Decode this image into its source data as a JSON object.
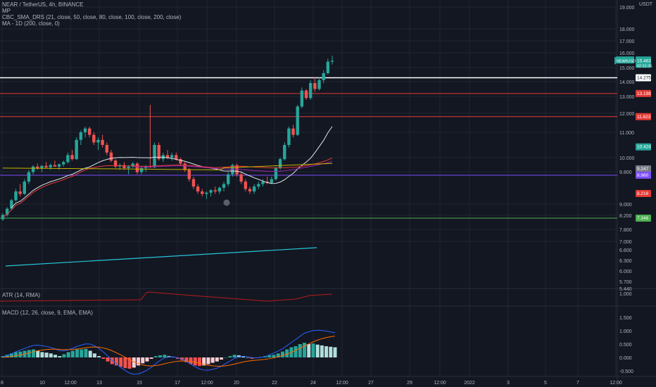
{
  "header": {
    "symbol_line": "NEAR / TetherUS, 4h, BINANCE",
    "indicator_mp": "MP",
    "indicator_cbc": "CBC_SMA_DRS (21, close, 50, close, 80, close, 100, close, 200, close)",
    "indicator_ma": "MA - 1D (200, close, 0)",
    "currency": "USDT"
  },
  "atr_panel": {
    "label": "ATR (14, RMA)",
    "axis_value": "1.000"
  },
  "macd_panel": {
    "label": "MACD (12, 26, close, 9, EMA, EMA)",
    "axis_labels": [
      "1.500",
      "1.000",
      "0.500",
      "0.000",
      "-0.500"
    ]
  },
  "colors": {
    "background": "#131722",
    "up": "#26a69a",
    "down": "#ef5350",
    "grid": "#1f2433",
    "sma21": "#e0e3eb",
    "sma50": "#e53935",
    "sma80": "#9c27b0",
    "sma200": "#c8b400",
    "ma1d": "#26c6da",
    "level_red": "#e53935",
    "level_white": "#ffffff",
    "level_purple": "#7c4dff",
    "level_green": "#4caf50"
  },
  "chart_data": {
    "type": "candlestick",
    "price_axis_labels": [
      "19.000",
      "18.000",
      "17.000",
      "16.000",
      "15.000",
      "14.000",
      "13.000",
      "12.000",
      "11.000",
      "10.000",
      "9.800",
      "9.000",
      "8.200",
      "7.800",
      "7.000",
      "6.600",
      "6.300",
      "6.000",
      "5.700",
      "5.440"
    ],
    "time_axis_labels": [
      "8",
      "10",
      "12:00",
      "13",
      "15",
      "17",
      "12:00",
      "20",
      "22",
      "24",
      "12:00",
      "27",
      "29",
      "12:00",
      "2022",
      "3",
      "5",
      "7",
      "12:00"
    ],
    "horizontal_levels": [
      {
        "price": "14.275",
        "color": "white"
      },
      {
        "price": "13.198",
        "color": "red"
      },
      {
        "price": "11.823",
        "color": "red"
      },
      {
        "price": "8.960",
        "color": "purple"
      },
      {
        "price": "7.346",
        "color": "green"
      }
    ],
    "price_tags": [
      {
        "label": "NEARUSDT",
        "value": "15.463",
        "sub": "02:31:35",
        "color": "teal"
      },
      {
        "value": "14.275",
        "color": "white"
      },
      {
        "value": "13.198",
        "color": "red"
      },
      {
        "value": "11.823",
        "color": "red"
      },
      {
        "value": "10.424",
        "color": "teal"
      },
      {
        "value": "9.247",
        "color": "gray"
      },
      {
        "value": "8.960",
        "color": "purple"
      },
      {
        "value": "8.216",
        "color": "red"
      },
      {
        "value": "7.346",
        "color": "green"
      }
    ],
    "candles": [
      [
        7.3,
        7.5,
        7.25,
        7.45
      ],
      [
        7.45,
        7.7,
        7.4,
        7.65
      ],
      [
        7.65,
        8.0,
        7.6,
        7.95
      ],
      [
        7.95,
        8.4,
        7.9,
        8.3
      ],
      [
        8.3,
        8.6,
        8.1,
        8.2
      ],
      [
        8.2,
        8.8,
        8.15,
        8.7
      ],
      [
        8.7,
        9.2,
        8.6,
        9.1
      ],
      [
        9.1,
        9.5,
        9.0,
        9.4
      ],
      [
        9.4,
        9.6,
        9.2,
        9.3
      ],
      [
        9.3,
        9.5,
        9.1,
        9.45
      ],
      [
        9.45,
        9.7,
        9.3,
        9.35
      ],
      [
        9.35,
        9.6,
        9.2,
        9.5
      ],
      [
        9.5,
        9.8,
        9.4,
        9.4
      ],
      [
        9.4,
        9.6,
        9.2,
        9.55
      ],
      [
        9.55,
        9.8,
        9.4,
        9.7
      ],
      [
        9.7,
        10.2,
        9.6,
        10.1
      ],
      [
        10.1,
        10.3,
        9.8,
        9.9
      ],
      [
        9.9,
        10.8,
        9.85,
        10.7
      ],
      [
        10.7,
        11.1,
        10.5,
        11.0
      ],
      [
        11.0,
        11.3,
        10.8,
        11.2
      ],
      [
        11.2,
        11.3,
        10.8,
        10.9
      ],
      [
        10.9,
        11.0,
        10.5,
        10.6
      ],
      [
        10.6,
        10.8,
        10.3,
        10.7
      ],
      [
        10.7,
        10.9,
        10.4,
        10.5
      ],
      [
        10.5,
        10.6,
        10.1,
        10.2
      ],
      [
        10.2,
        10.3,
        9.7,
        9.8
      ],
      [
        9.8,
        9.9,
        9.3,
        9.4
      ],
      [
        9.4,
        9.6,
        9.2,
        9.5
      ],
      [
        9.5,
        9.7,
        9.2,
        9.3
      ],
      [
        9.3,
        9.5,
        9.0,
        9.4
      ],
      [
        9.4,
        9.7,
        9.3,
        9.6
      ],
      [
        9.6,
        9.7,
        9.0,
        9.1
      ],
      [
        9.1,
        9.4,
        9.0,
        9.3
      ],
      [
        9.3,
        9.5,
        9.1,
        9.4
      ],
      [
        9.4,
        12.5,
        9.3,
        9.35
      ],
      [
        9.35,
        10.6,
        9.3,
        10.5
      ],
      [
        10.5,
        10.6,
        9.8,
        9.9
      ],
      [
        9.9,
        10.2,
        9.7,
        10.1
      ],
      [
        10.1,
        10.3,
        9.9,
        10.0
      ],
      [
        10.0,
        10.2,
        9.8,
        10.1
      ],
      [
        10.1,
        10.2,
        9.8,
        9.9
      ],
      [
        9.9,
        10.0,
        9.5,
        9.6
      ],
      [
        9.6,
        9.7,
        9.1,
        9.2
      ],
      [
        9.2,
        9.3,
        8.7,
        8.8
      ],
      [
        8.8,
        8.9,
        8.4,
        8.5
      ],
      [
        8.5,
        8.6,
        8.2,
        8.3
      ],
      [
        8.3,
        8.4,
        8.1,
        8.2
      ],
      [
        8.2,
        8.3,
        8.0,
        8.25
      ],
      [
        8.25,
        8.4,
        8.1,
        8.35
      ],
      [
        8.35,
        8.5,
        8.2,
        8.3
      ],
      [
        8.3,
        8.5,
        8.2,
        8.45
      ],
      [
        8.45,
        8.7,
        8.3,
        8.6
      ],
      [
        8.6,
        9.1,
        8.5,
        9.0
      ],
      [
        9.0,
        9.6,
        8.9,
        9.5
      ],
      [
        9.5,
        9.6,
        8.9,
        9.0
      ],
      [
        9.0,
        9.1,
        8.6,
        8.7
      ],
      [
        8.7,
        8.8,
        8.3,
        8.4
      ],
      [
        8.4,
        8.5,
        8.2,
        8.3
      ],
      [
        8.3,
        8.6,
        8.2,
        8.5
      ],
      [
        8.5,
        8.7,
        8.4,
        8.6
      ],
      [
        8.6,
        8.8,
        8.5,
        8.7
      ],
      [
        8.7,
        8.9,
        8.6,
        8.65
      ],
      [
        8.65,
        8.9,
        8.6,
        8.8
      ],
      [
        8.8,
        9.4,
        8.75,
        9.3
      ],
      [
        9.3,
        10.0,
        9.2,
        9.9
      ],
      [
        9.9,
        10.6,
        9.8,
        10.5
      ],
      [
        10.5,
        11.3,
        10.4,
        11.2
      ],
      [
        11.2,
        11.4,
        10.8,
        10.9
      ],
      [
        10.9,
        12.5,
        10.85,
        12.4
      ],
      [
        12.4,
        13.6,
        12.3,
        13.4
      ],
      [
        13.4,
        13.5,
        12.8,
        12.9
      ],
      [
        12.9,
        14.1,
        12.8,
        13.9
      ],
      [
        13.9,
        14.3,
        13.3,
        13.5
      ],
      [
        13.5,
        14.3,
        13.4,
        14.1
      ],
      [
        14.1,
        14.8,
        13.9,
        14.6
      ],
      [
        14.6,
        15.6,
        14.5,
        15.4
      ],
      [
        15.4,
        15.8,
        15.2,
        15.463
      ]
    ],
    "macd_histogram": [
      0.05,
      0.1,
      0.15,
      0.2,
      0.22,
      0.25,
      0.28,
      0.3,
      0.25,
      0.2,
      0.18,
      0.15,
      0.1,
      0.05,
      0.12,
      0.2,
      0.25,
      0.3,
      0.3,
      0.32,
      0.25,
      0.15,
      0.05,
      -0.05,
      -0.15,
      -0.25,
      -0.3,
      -0.35,
      -0.4,
      -0.42,
      -0.38,
      -0.3,
      -0.22,
      -0.15,
      -0.05,
      0.05,
      0.08,
      0.1,
      0.05,
      0.02,
      -0.05,
      -0.1,
      -0.18,
      -0.25,
      -0.3,
      -0.32,
      -0.3,
      -0.25,
      -0.2,
      -0.15,
      -0.08,
      0.0,
      0.05,
      0.1,
      0.08,
      0.05,
      0.0,
      -0.05,
      -0.02,
      0.02,
      0.05,
      0.08,
      0.1,
      0.15,
      0.22,
      0.3,
      0.38,
      0.42,
      0.5,
      0.55,
      0.5,
      0.52,
      0.48,
      0.45,
      0.42,
      0.4,
      0.38
    ]
  }
}
